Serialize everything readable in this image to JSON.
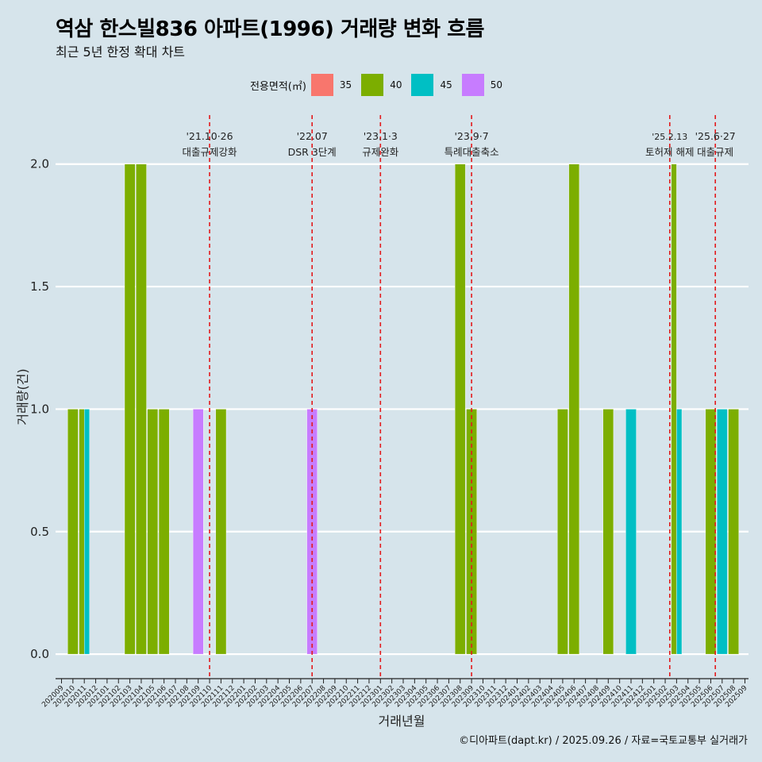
{
  "chart_data": {
    "type": "bar",
    "title": "역삼 한스빌836 아파트(1996) 거래량 변화 흐름",
    "subtitle": "최근 5년 한정 확대 차트",
    "xlabel": "거래년월",
    "ylabel": "거래량(건)",
    "ylim": [
      -0.1,
      2.2
    ],
    "yticks": [
      "0.0",
      "0.5",
      "1.0",
      "1.5",
      "2.0"
    ],
    "legend_title": "전용면적(㎡)",
    "legend": [
      {
        "label": "35",
        "color": "#f8766d"
      },
      {
        "label": "40",
        "color": "#7cae00"
      },
      {
        "label": "45",
        "color": "#00bfc4"
      },
      {
        "label": "50",
        "color": "#c77cff"
      }
    ],
    "categories": [
      "202009",
      "202010",
      "202011",
      "202012",
      "202101",
      "202102",
      "202103",
      "202104",
      "202105",
      "202106",
      "202107",
      "202108",
      "202109",
      "202110",
      "202111",
      "202112",
      "202201",
      "202202",
      "202203",
      "202204",
      "202205",
      "202206",
      "202207",
      "202208",
      "202209",
      "202210",
      "202211",
      "202212",
      "202301",
      "202302",
      "202303",
      "202304",
      "202305",
      "202306",
      "202307",
      "202308",
      "202309",
      "202310",
      "202311",
      "202312",
      "202401",
      "202402",
      "202403",
      "202404",
      "202405",
      "202406",
      "202407",
      "202408",
      "202409",
      "202410",
      "202411",
      "202412",
      "202501",
      "202502",
      "202503",
      "202504",
      "202505",
      "202506",
      "202507",
      "202508",
      "202509"
    ],
    "bars": [
      {
        "month": "202010",
        "area": "40",
        "value": 1
      },
      {
        "month": "202011",
        "area": "40",
        "value": 1
      },
      {
        "month": "202011",
        "area": "45",
        "value": 1
      },
      {
        "month": "202103",
        "area": "40",
        "value": 2
      },
      {
        "month": "202104",
        "area": "40",
        "value": 2
      },
      {
        "month": "202105",
        "area": "40",
        "value": 1
      },
      {
        "month": "202106",
        "area": "40",
        "value": 1
      },
      {
        "month": "202109",
        "area": "50",
        "value": 1
      },
      {
        "month": "202111",
        "area": "40",
        "value": 1
      },
      {
        "month": "202207",
        "area": "50",
        "value": 1
      },
      {
        "month": "202308",
        "area": "40",
        "value": 2
      },
      {
        "month": "202309",
        "area": "40",
        "value": 1
      },
      {
        "month": "202405",
        "area": "40",
        "value": 1
      },
      {
        "month": "202406",
        "area": "40",
        "value": 2
      },
      {
        "month": "202409",
        "area": "40",
        "value": 1
      },
      {
        "month": "202411",
        "area": "45",
        "value": 1
      },
      {
        "month": "202503",
        "area": "40",
        "value": 2
      },
      {
        "month": "202503",
        "area": "45",
        "value": 1
      },
      {
        "month": "202506",
        "area": "40",
        "value": 1
      },
      {
        "month": "202507",
        "area": "45",
        "value": 1
      },
      {
        "month": "202508",
        "area": "40",
        "value": 1
      }
    ],
    "annotations": [
      {
        "at": 13.0,
        "date": "'21.10·26",
        "label": "대출규제강화"
      },
      {
        "at": 22.0,
        "date": "'22.07",
        "label": "DSR 3단계"
      },
      {
        "at": 28.0,
        "date": "'23.1·3",
        "label": "규제완화"
      },
      {
        "at": 36.0,
        "date": "'23.9·7",
        "label": "특례대출축소"
      },
      {
        "at": 53.4,
        "date": "'25.2.13",
        "label": "토허제 해제"
      },
      {
        "at": 57.4,
        "date": "'25.6·27",
        "label": "대출규제"
      }
    ],
    "annotation_color": "#e31a1c"
  },
  "caption": "©디아파트(dapt.kr) / 2025.09.26 / 자료=국토교통부 실거래가"
}
